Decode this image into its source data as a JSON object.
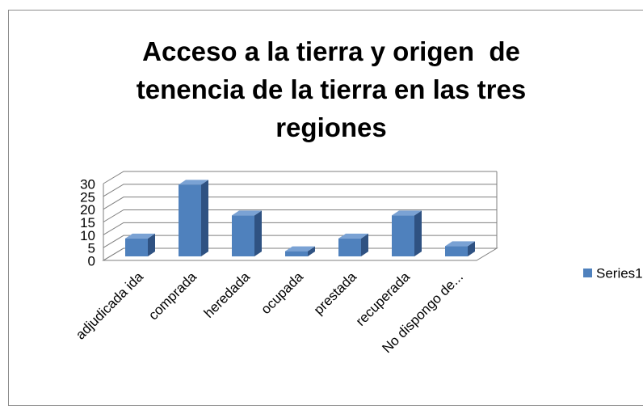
{
  "chart_data": {
    "type": "bar3d",
    "title": "Acceso a la tierra y origen  de tenencia de la tierra en las tres regiones",
    "categories": [
      "adjudicada ida",
      "comprada",
      "heredada",
      "ocupada",
      "prestada",
      "recuperada",
      "No dispongo de..."
    ],
    "series": [
      {
        "name": "Series1",
        "color": "#4f81bd",
        "values": [
          7,
          28,
          16,
          2,
          7,
          16,
          4
        ]
      }
    ],
    "ylim": [
      0,
      30
    ],
    "yticks": [
      0,
      5,
      10,
      15,
      20,
      25,
      30
    ],
    "grid": true,
    "legend": "right"
  }
}
